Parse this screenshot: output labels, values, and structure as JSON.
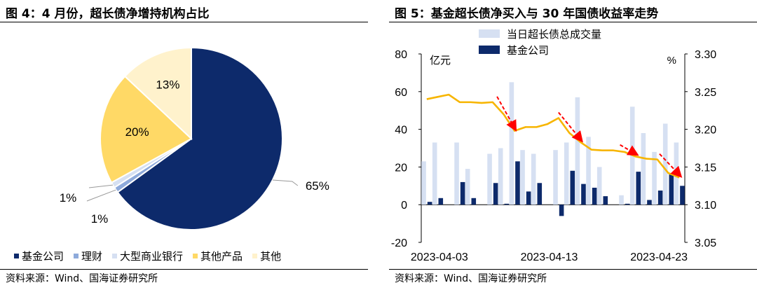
{
  "left": {
    "title": "图 4：4 月份，超长债净增持机构占比",
    "source": "资料来源：Wind、国海证券研究所",
    "legend": [
      "基金公司",
      "理财",
      "大型商业银行",
      "其他产品",
      "其他"
    ]
  },
  "right": {
    "title": "图 5：基金超长债净买入与 30 年国债收益率走势",
    "source": "资料来源：Wind、国海证券研究所",
    "left_unit": "亿元",
    "right_unit": "%"
  },
  "colors": {
    "navy": "#0d2a6b",
    "light_blue": "#8eaadb",
    "pale_blue": "#d6e0f2",
    "yellow": "#ffd966",
    "cream": "#fff2cc",
    "line": "#f7b500",
    "arrow": "#ff0000"
  },
  "chart_data": [
    {
      "type": "pie",
      "slices": [
        {
          "name": "基金公司",
          "value": 65,
          "label": "65%"
        },
        {
          "name": "理财",
          "value": 1,
          "label": "1%"
        },
        {
          "name": "大型商业银行",
          "value": 1,
          "label": "1%"
        },
        {
          "name": "其他产品",
          "value": 20,
          "label": "20%"
        },
        {
          "name": "其他",
          "value": 13,
          "label": "13%"
        }
      ],
      "legend_position": "bottom"
    },
    {
      "type": "bar",
      "x_ticks": [
        "2023-04-03",
        "2023-04-13",
        "2023-04-23"
      ],
      "y_left": {
        "label": "亿元",
        "ticks": [
          -20,
          0,
          20,
          40,
          60,
          80
        ],
        "ylim": [
          -20,
          80
        ]
      },
      "y_right": {
        "label": "%",
        "ticks": [
          3.05,
          3.1,
          3.15,
          3.2,
          3.25,
          3.3
        ],
        "ylim": [
          3.05,
          3.3
        ]
      },
      "series": [
        {
          "name": "当日超长债总成交量",
          "type": "bar",
          "values": [
            23,
            33,
            null,
            33,
            19,
            null,
            27,
            30,
            65,
            29,
            27,
            null,
            29,
            33,
            57,
            36,
            20,
            null,
            5,
            52,
            38,
            28,
            43,
            33
          ]
        },
        {
          "name": "基金公司",
          "type": "bar",
          "values": [
            1.5,
            3.5,
            null,
            12,
            3.5,
            null,
            11.5,
            0.5,
            23,
            7,
            11.5,
            null,
            -6,
            18,
            11,
            9,
            4.5,
            null,
            0.5,
            17.5,
            2.5,
            7.5,
            16,
            10
          ]
        },
        {
          "name": "30年国债收益率",
          "type": "line",
          "axis": "right",
          "values": [
            3.24,
            3.243,
            3.246,
            3.236,
            3.236,
            3.235,
            3.236,
            3.22,
            3.198,
            3.203,
            3.203,
            3.207,
            3.215,
            3.195,
            3.183,
            3.173,
            3.172,
            3.172,
            3.17,
            3.164,
            3.161,
            3.16,
            3.142,
            3.136
          ]
        }
      ],
      "annotations": [
        "red dashed arrows marking yield declines"
      ],
      "legend_position": "top"
    }
  ]
}
